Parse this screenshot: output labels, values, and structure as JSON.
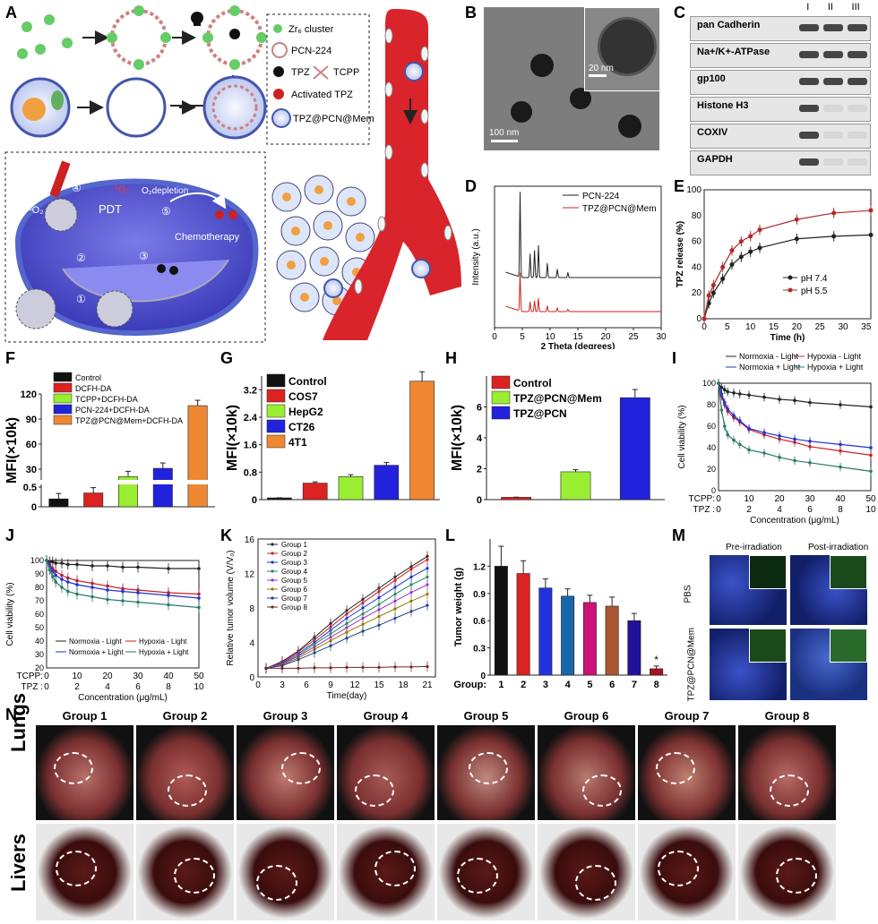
{
  "panels": {
    "A": "A",
    "B": "B",
    "C": "C",
    "D": "D",
    "E": "E",
    "F": "F",
    "G": "G",
    "H": "H",
    "I": "I",
    "J": "J",
    "K": "K",
    "L": "L",
    "M": "M",
    "N": "N"
  },
  "schematic": {
    "legend": [
      "Zr₆ cluster",
      "PCN-224",
      "TPZ",
      "TCPP",
      "Activated TPZ",
      "TPZ@PCN@Mem"
    ],
    "labels": {
      "o2": "³O₂",
      "singlet": "¹O₂",
      "depletion": "O₂depletion",
      "pdt": "PDT",
      "chemo": "Chemotherapy"
    },
    "steps": [
      "①",
      "②",
      "③",
      "④",
      "⑤"
    ]
  },
  "tem": {
    "scale_main": "100 nm",
    "scale_inset": "20 nm"
  },
  "western": {
    "lanes": [
      "I",
      "II",
      "III"
    ],
    "rows": [
      {
        "label": "pan Cadherin",
        "bands": [
          1,
          1,
          1
        ]
      },
      {
        "label": "Na+/K+-ATPase",
        "bands": [
          1,
          1,
          1
        ]
      },
      {
        "label": "gp100",
        "bands": [
          1,
          1,
          1
        ]
      },
      {
        "label": "Histone H3",
        "bands": [
          1,
          0,
          0
        ]
      },
      {
        "label": "COXIV",
        "bands": [
          1,
          0,
          0
        ]
      },
      {
        "label": "GAPDH",
        "bands": [
          1,
          0,
          0
        ]
      }
    ]
  },
  "mic": {
    "col_pre": "Pre-irradiation",
    "col_post": "Post-irradiation",
    "row_pbs": "PBS",
    "row_tpz": "TPZ@PCN@Mem"
  },
  "photos": {
    "groups": [
      "Group 1",
      "Group 2",
      "Group 3",
      "Group 4",
      "Group 5",
      "Group 6",
      "Group 7",
      "Group 8"
    ],
    "row_lungs": "Lungs",
    "row_livers": "Livers"
  },
  "chart_data": [
    {
      "panel": "D",
      "type": "line",
      "xlabel": "2 Theta (degrees)",
      "ylabel": "Intensity (a.u.)",
      "xlim": [
        0,
        30
      ],
      "xticks": [
        0,
        5,
        10,
        15,
        20,
        25,
        30
      ],
      "series": [
        {
          "name": "PCN-224",
          "color": "#222222",
          "peaks": [
            [
              4.6,
              1.0
            ],
            [
              6.4,
              0.28
            ],
            [
              7.2,
              0.32
            ],
            [
              7.9,
              0.38
            ],
            [
              9.5,
              0.17
            ],
            [
              11.3,
              0.1
            ],
            [
              13.2,
              0.06
            ]
          ]
        },
        {
          "name": "TPZ@PCN@Mem",
          "color": "#cc2222",
          "peaks": [
            [
              4.6,
              0.85
            ],
            [
              6.4,
              0.22
            ],
            [
              7.2,
              0.24
            ],
            [
              7.9,
              0.3
            ],
            [
              9.5,
              0.13
            ],
            [
              11.3,
              0.08
            ],
            [
              13.2,
              0.05
            ]
          ]
        }
      ]
    },
    {
      "panel": "E",
      "type": "line",
      "xlabel": "Time (h)",
      "ylabel": "TPZ release (%)",
      "xlim": [
        0,
        36
      ],
      "ylim": [
        0,
        100
      ],
      "xticks": [
        0,
        5,
        10,
        15,
        20,
        25,
        30,
        35
      ],
      "yticks": [
        0,
        20,
        40,
        60,
        80,
        100
      ],
      "series": [
        {
          "name": "pH 7.4",
          "color": "#222222",
          "x": [
            0,
            1,
            2,
            4,
            6,
            8,
            10,
            12,
            20,
            28,
            36
          ],
          "y": [
            0,
            12,
            20,
            31,
            42,
            48,
            52,
            55,
            62,
            64,
            65
          ]
        },
        {
          "name": "pH 5.5",
          "color": "#b02a2a",
          "x": [
            0,
            1,
            2,
            4,
            6,
            8,
            10,
            12,
            20,
            28,
            36
          ],
          "y": [
            0,
            18,
            26,
            40,
            53,
            60,
            64,
            69,
            77,
            82,
            84
          ]
        }
      ]
    },
    {
      "panel": "F",
      "type": "bar",
      "ylabel": "MFI(×10k)",
      "yticks": [
        "0",
        "0.5",
        "30",
        "60",
        "90",
        "120"
      ],
      "categories": [
        "Control",
        "DCFH-DA",
        "TCPP+DCFH-DA",
        "PCN-224+DCFH-DA",
        "TPZ@PCN@Mem+DCFH-DA"
      ],
      "values": [
        0.2,
        0.35,
        21,
        31,
        106
      ],
      "colors": [
        "#111111",
        "#dd2222",
        "#99ee33",
        "#2222dd",
        "#ee8833"
      ]
    },
    {
      "panel": "G",
      "type": "bar",
      "ylabel": "MFI(×10k)",
      "ylim": [
        0,
        3.6
      ],
      "yticks": [
        0,
        0.8,
        1.6,
        2.4,
        3.2
      ],
      "categories": [
        "Control",
        "COS7",
        "HepG2",
        "CT26",
        "4T1"
      ],
      "values": [
        0.05,
        0.48,
        0.67,
        1.0,
        3.45
      ],
      "colors": [
        "#111111",
        "#dd2222",
        "#99ee33",
        "#2222dd",
        "#ee8833"
      ]
    },
    {
      "panel": "H",
      "type": "bar",
      "ylabel": "MFI(×10k)",
      "ylim": [
        0,
        8
      ],
      "yticks": [
        0,
        2,
        4,
        6
      ],
      "categories": [
        "Control",
        "TPZ@PCN@Mem",
        "TPZ@PCN"
      ],
      "values": [
        0.15,
        1.8,
        6.6
      ],
      "colors": [
        "#dd2222",
        "#99ee33",
        "#2222dd"
      ]
    },
    {
      "panel": "I",
      "type": "line",
      "ylabel": "Cell viability (%)",
      "xlabel": "Concentration (μg/mL)",
      "ylim": [
        0,
        100
      ],
      "yticks": [
        0,
        20,
        40,
        60,
        80,
        100
      ],
      "xrow1_label": "TCPP:",
      "xrow1": [
        "0",
        "10",
        "20",
        "30",
        "40",
        "50"
      ],
      "xrow2_label": "TPZ :",
      "xrow2": [
        "0",
        "2",
        "4",
        "6",
        "8",
        "10"
      ],
      "x": [
        0,
        1,
        2,
        3,
        5,
        7,
        10,
        15,
        20,
        25,
        30,
        40,
        50
      ],
      "series": [
        {
          "name": "Normoxia - Light",
          "color": "#222222",
          "y": [
            100,
            96,
            94,
            92,
            91,
            90,
            89,
            87,
            85,
            84,
            82,
            80,
            78
          ]
        },
        {
          "name": "Hypoxia - Light",
          "color": "#cc2222",
          "y": [
            100,
            88,
            80,
            74,
            68,
            64,
            57,
            52,
            48,
            45,
            41,
            37,
            33
          ]
        },
        {
          "name": "Normoxia + Light",
          "color": "#2233cc",
          "y": [
            100,
            90,
            82,
            76,
            70,
            65,
            58,
            54,
            51,
            48,
            46,
            43,
            40
          ]
        },
        {
          "name": "Hypoxia + Light",
          "color": "#2b7a6a",
          "y": [
            100,
            75,
            60,
            52,
            47,
            43,
            38,
            35,
            31,
            28,
            26,
            22,
            18
          ]
        }
      ]
    },
    {
      "panel": "J",
      "type": "line",
      "ylabel": "Cell viability (%)",
      "xlabel": "Concentration (μg/mL)",
      "ylim": [
        20,
        100
      ],
      "yticks": [
        20,
        30,
        40,
        50,
        60,
        70,
        80,
        90,
        100
      ],
      "xrow1_label": "TCPP:",
      "xrow1": [
        "0",
        "10",
        "20",
        "30",
        "40",
        "50"
      ],
      "xrow2_label": "TPZ :",
      "xrow2": [
        "0",
        "2",
        "4",
        "6",
        "8",
        "10"
      ],
      "x": [
        0,
        1,
        2,
        3,
        5,
        7,
        10,
        15,
        20,
        25,
        30,
        40,
        50
      ],
      "series": [
        {
          "name": "Normoxia - Light",
          "color": "#222222",
          "y": [
            100,
            99,
            99,
            98,
            98,
            97,
            97,
            96,
            96,
            95,
            95,
            94,
            94
          ]
        },
        {
          "name": "Hypoxia - Light",
          "color": "#cc2222",
          "y": [
            100,
            97,
            94,
            92,
            89,
            87,
            85,
            83,
            81,
            79,
            78,
            76,
            75
          ]
        },
        {
          "name": "Normoxia + Light",
          "color": "#2233cc",
          "y": [
            100,
            96,
            92,
            89,
            86,
            84,
            82,
            80,
            78,
            77,
            76,
            74,
            72
          ]
        },
        {
          "name": "Hypoxia + Light",
          "color": "#2b7a6a",
          "y": [
            100,
            93,
            88,
            84,
            80,
            77,
            75,
            73,
            71,
            70,
            69,
            67,
            65
          ]
        }
      ]
    },
    {
      "panel": "K",
      "type": "line",
      "ylabel": "Relative tumor volume (V/V₀)",
      "xlabel": "Time(day)",
      "xlim": [
        0,
        22
      ],
      "ylim": [
        0,
        16
      ],
      "xticks": [
        0,
        3,
        6,
        9,
        12,
        15,
        18,
        21
      ],
      "yticks": [
        0,
        4,
        8,
        12,
        16
      ],
      "x": [
        1,
        3,
        5,
        7,
        9,
        11,
        13,
        15,
        17,
        19,
        21
      ],
      "series": [
        {
          "name": "Group 1",
          "color": "#222222",
          "y": [
            1,
            1.8,
            3,
            4.6,
            6.2,
            7.7,
            9,
            10.3,
            11.6,
            12.8,
            14
          ]
        },
        {
          "name": "Group 2",
          "color": "#cc2222",
          "y": [
            1,
            1.7,
            2.9,
            4.3,
            5.8,
            7.3,
            8.6,
            9.9,
            11.2,
            12.5,
            13.6
          ]
        },
        {
          "name": "Group 3",
          "color": "#2233cc",
          "y": [
            1,
            1.6,
            2.7,
            4,
            5.4,
            6.8,
            8,
            9.2,
            10.4,
            11.6,
            12.6
          ]
        },
        {
          "name": "Group 4",
          "color": "#2b8a6a",
          "y": [
            1,
            1.5,
            2.5,
            3.8,
            5,
            6.2,
            7.3,
            8.4,
            9.6,
            10.7,
            11.6
          ]
        },
        {
          "name": "Group 5",
          "color": "#9933cc",
          "y": [
            1,
            1.5,
            2.4,
            3.5,
            4.6,
            5.7,
            6.8,
            7.8,
            8.8,
            9.8,
            10.7
          ]
        },
        {
          "name": "Group 6",
          "color": "#997700",
          "y": [
            1,
            1.4,
            2.2,
            3.2,
            4.2,
            5.2,
            6.1,
            7,
            7.9,
            8.8,
            9.6
          ]
        },
        {
          "name": "Group 7",
          "color": "#224488",
          "y": [
            1,
            1.3,
            2,
            2.8,
            3.6,
            4.5,
            5.3,
            6,
            6.8,
            7.6,
            8.3
          ]
        },
        {
          "name": "Group 8",
          "color": "#7a2222",
          "y": [
            1,
            1,
            1,
            1.05,
            1.05,
            1.1,
            1.1,
            1.1,
            1.15,
            1.15,
            1.2
          ]
        }
      ]
    },
    {
      "panel": "L",
      "type": "bar",
      "ylabel": "Tumor weight (g)",
      "xlabel": "Group:",
      "ylim": [
        0,
        1.5
      ],
      "yticks": [
        0,
        0.3,
        0.6,
        0.9,
        1.2
      ],
      "categories": [
        "1",
        "2",
        "3",
        "4",
        "5",
        "6",
        "7",
        "8"
      ],
      "values": [
        1.2,
        1.12,
        0.96,
        0.87,
        0.8,
        0.76,
        0.6,
        0.07
      ],
      "errors": [
        0.22,
        0.14,
        0.1,
        0.08,
        0.08,
        0.1,
        0.08,
        0.03
      ],
      "colors": [
        "#111111",
        "#dd2222",
        "#2233dd",
        "#1a66aa",
        "#cc1177",
        "#aa5533",
        "#221199",
        "#aa1122"
      ],
      "annotation": "*"
    }
  ]
}
